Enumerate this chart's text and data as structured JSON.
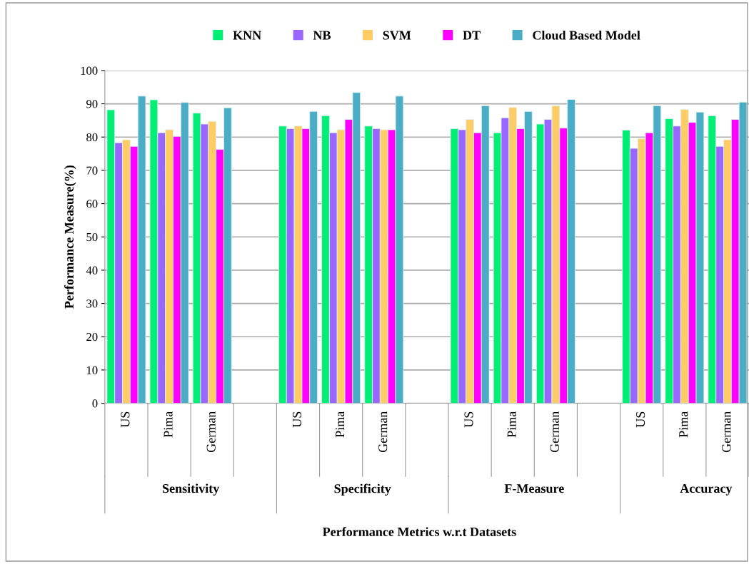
{
  "chart_data": {
    "type": "bar",
    "ylabel": "Performance Measure(%)",
    "categories": [
      "US",
      "Pima",
      "German",
      null,
      "US",
      "Pima",
      "German",
      null,
      "US",
      "Pima",
      "German",
      null,
      "US",
      "Pima",
      "German"
    ],
    "annotations": [
      "Sensitivity",
      "Specificity",
      "F-Measure",
      "Accuracy",
      "Performance Metrics w.r.t Datasets"
    ],
    "ylim": [
      0,
      100
    ],
    "yticks": [
      0,
      10,
      20,
      30,
      40,
      50,
      60,
      70,
      80,
      90,
      100
    ],
    "grid": "y",
    "legend": "top",
    "series": [
      {
        "name": "KNN",
        "color": "#00ee76",
        "values": [
          88.2,
          91.2,
          87.2,
          null,
          83.3,
          86.4,
          83.3,
          null,
          82.5,
          81.3,
          83.9,
          null,
          82.1,
          85.5,
          86.4
        ]
      },
      {
        "name": "NB",
        "color": "#9966ff",
        "values": [
          78.3,
          81.3,
          83.9,
          null,
          82.5,
          81.3,
          82.5,
          null,
          82.2,
          85.8,
          85.3,
          null,
          76.6,
          83.3,
          77.2
        ]
      },
      {
        "name": "SVM",
        "color": "#ffcc66",
        "values": [
          79.2,
          82.2,
          84.7,
          null,
          83.3,
          82.2,
          82.2,
          null,
          85.3,
          88.9,
          89.4,
          null,
          79.5,
          88.3,
          79.2
        ]
      },
      {
        "name": "DT",
        "color": "#ff00ff",
        "values": [
          77.2,
          80.2,
          76.3,
          null,
          82.5,
          85.3,
          82.2,
          null,
          81.3,
          82.5,
          82.7,
          null,
          81.3,
          84.4,
          85.3
        ]
      },
      {
        "name": "Cloud Based Model",
        "color": "#4bacc6",
        "values": [
          92.3,
          90.4,
          88.8,
          null,
          87.7,
          93.4,
          92.3,
          null,
          89.4,
          87.7,
          91.3,
          null,
          89.4,
          87.5,
          90.5
        ]
      }
    ]
  }
}
